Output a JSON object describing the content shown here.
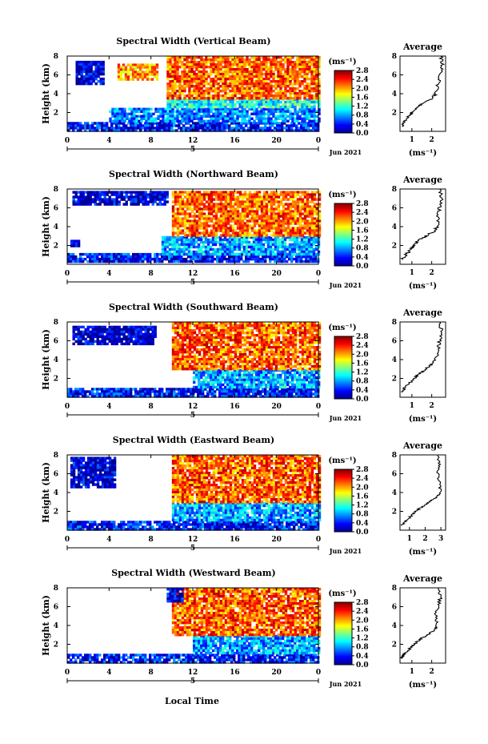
{
  "figure": {
    "x_title": "Local Time",
    "date_label": "Jun 2021",
    "y_label": "Height (km)",
    "colorbar_unit": "(ms⁻¹)",
    "avg_title": "Average",
    "avg_xlabel": "(ms⁻¹)",
    "colormap": "jet",
    "colormap_colors": [
      "#00008f",
      "#0000ff",
      "#0080ff",
      "#00ffff",
      "#80ff80",
      "#ffff00",
      "#ff8000",
      "#ff0000",
      "#800000"
    ]
  },
  "chart_data": [
    {
      "type": "heatmap",
      "title": "Spectral Width (Vertical Beam)",
      "xlabel": "Local Time",
      "ylabel": "Height (km)",
      "xlim": [
        0,
        24
      ],
      "ylim": [
        0,
        8
      ],
      "x_ticks": [
        "0",
        "4",
        "8",
        "12",
        "16",
        "20",
        "0"
      ],
      "x_day_label": "5",
      "y_ticks": [
        "2",
        "4",
        "6",
        "8"
      ],
      "colorbar": {
        "label": "(ms⁻¹)",
        "ticks": [
          "0.0",
          "0.4",
          "0.8",
          "1.2",
          "1.6",
          "2.0",
          "2.4",
          "2.8"
        ],
        "range": [
          0,
          2.8
        ]
      },
      "regions": [
        {
          "x": [
            0,
            24
          ],
          "y": [
            0.2,
            1.0
          ],
          "value": 0.4
        },
        {
          "x": [
            4,
            24
          ],
          "y": [
            1.0,
            2.5
          ],
          "value": 0.7
        },
        {
          "x": [
            9.5,
            24
          ],
          "y": [
            2.5,
            3.5
          ],
          "value": 1.1
        },
        {
          "x": [
            9.5,
            24
          ],
          "y": [
            3.5,
            8
          ],
          "value": 2.2
        },
        {
          "x": [
            0.8,
            3.5
          ],
          "y": [
            5.2,
            7.5
          ],
          "value": 0.2
        },
        {
          "x": [
            4.8,
            8.5
          ],
          "y": [
            5.5,
            7.2
          ],
          "value": 2.0
        }
      ],
      "average": {
        "title": "Average",
        "xlabel": "(ms⁻¹)",
        "xlim": [
          0.4,
          2.7
        ],
        "x_ticks": [
          "1",
          "2"
        ],
        "y_ticks": [
          "2",
          "4",
          "6",
          "8"
        ],
        "ylim": [
          0,
          8
        ],
        "profile": [
          [
            0.5,
            0.5
          ],
          [
            0.6,
            1.0
          ],
          [
            0.8,
            1.5
          ],
          [
            1.0,
            2.0
          ],
          [
            1.2,
            2.5
          ],
          [
            1.6,
            3.0
          ],
          [
            2.0,
            3.5
          ],
          [
            2.2,
            4.0
          ],
          [
            2.3,
            5.0
          ],
          [
            2.45,
            6.0
          ],
          [
            2.55,
            7.0
          ],
          [
            2.45,
            8.0
          ]
        ]
      }
    },
    {
      "type": "heatmap",
      "title": "Spectral Width (Northward Beam)",
      "xlabel": "Local Time",
      "ylabel": "Height (km)",
      "xlim": [
        0,
        24
      ],
      "ylim": [
        0,
        8
      ],
      "x_ticks": [
        "0",
        "4",
        "8",
        "12",
        "16",
        "20",
        "0"
      ],
      "x_day_label": "5",
      "y_ticks": [
        "2",
        "4",
        "6",
        "8"
      ],
      "colorbar": {
        "label": "(ms⁻¹)",
        "ticks": [
          "0.0",
          "0.4",
          "0.8",
          "1.2",
          "1.6",
          "2.0",
          "2.4",
          "2.8"
        ],
        "range": [
          0,
          2.8
        ]
      },
      "regions": [
        {
          "x": [
            0,
            24
          ],
          "y": [
            0.2,
            1.2
          ],
          "value": 0.4
        },
        {
          "x": [
            9,
            24
          ],
          "y": [
            1.2,
            3.0
          ],
          "value": 0.8
        },
        {
          "x": [
            10,
            24
          ],
          "y": [
            3.0,
            7.8
          ],
          "value": 2.2
        },
        {
          "x": [
            0.5,
            9.5
          ],
          "y": [
            6.5,
            7.8
          ],
          "value": 0.2
        },
        {
          "x": [
            0.3,
            1.2
          ],
          "y": [
            2.0,
            2.6
          ],
          "value": 0.2
        }
      ],
      "average": {
        "title": "Average",
        "xlabel": "(ms⁻¹)",
        "xlim": [
          0.4,
          2.7
        ],
        "x_ticks": [
          "1",
          "2"
        ],
        "y_ticks": [
          "2",
          "4",
          "6",
          "8"
        ],
        "ylim": [
          0,
          8
        ],
        "profile": [
          [
            0.5,
            0.5
          ],
          [
            0.7,
            1.0
          ],
          [
            0.9,
            1.5
          ],
          [
            1.1,
            2.0
          ],
          [
            1.3,
            2.5
          ],
          [
            1.7,
            3.0
          ],
          [
            2.1,
            3.5
          ],
          [
            2.3,
            4.0
          ],
          [
            2.3,
            5.0
          ],
          [
            2.4,
            6.0
          ],
          [
            2.5,
            7.0
          ],
          [
            2.4,
            8.0
          ]
        ]
      }
    },
    {
      "type": "heatmap",
      "title": "Spectral Width (Southward Beam)",
      "xlabel": "Local Time",
      "ylabel": "Height (km)",
      "xlim": [
        0,
        24
      ],
      "ylim": [
        0,
        8
      ],
      "x_ticks": [
        "0",
        "4",
        "8",
        "12",
        "16",
        "20",
        "0"
      ],
      "x_day_label": "5",
      "y_ticks": [
        "2",
        "4",
        "6",
        "8"
      ],
      "colorbar": {
        "label": "(ms⁻¹)",
        "ticks": [
          "0.0",
          "0.4",
          "0.8",
          "1.2",
          "1.6",
          "2.0",
          "2.4",
          "2.8"
        ],
        "range": [
          0,
          2.8
        ]
      },
      "regions": [
        {
          "x": [
            0,
            24
          ],
          "y": [
            0.2,
            1.0
          ],
          "value": 0.4
        },
        {
          "x": [
            12,
            24
          ],
          "y": [
            1.0,
            3.0
          ],
          "value": 0.8
        },
        {
          "x": [
            10,
            24
          ],
          "y": [
            3.0,
            8
          ],
          "value": 2.2
        },
        {
          "x": [
            0.5,
            8.5
          ],
          "y": [
            5.8,
            7.6
          ],
          "value": 0.2
        }
      ],
      "average": {
        "title": "Average",
        "xlabel": "(ms⁻¹)",
        "xlim": [
          0.4,
          2.7
        ],
        "x_ticks": [
          "1",
          "2"
        ],
        "y_ticks": [
          "2",
          "4",
          "6",
          "8"
        ],
        "ylim": [
          0,
          8
        ],
        "profile": [
          [
            0.5,
            0.5
          ],
          [
            0.6,
            1.0
          ],
          [
            0.9,
            1.5
          ],
          [
            1.1,
            2.0
          ],
          [
            1.4,
            2.5
          ],
          [
            1.7,
            3.0
          ],
          [
            2.0,
            3.5
          ],
          [
            2.2,
            4.0
          ],
          [
            2.3,
            5.0
          ],
          [
            2.4,
            6.0
          ],
          [
            2.5,
            7.0
          ],
          [
            2.4,
            8.0
          ]
        ]
      }
    },
    {
      "type": "heatmap",
      "title": "Spectral Width (Eastward Beam)",
      "xlabel": "Local Time",
      "ylabel": "Height (km)",
      "xlim": [
        0,
        24
      ],
      "ylim": [
        0,
        8
      ],
      "x_ticks": [
        "0",
        "4",
        "8",
        "12",
        "16",
        "20",
        "0"
      ],
      "x_day_label": "5",
      "y_ticks": [
        "2",
        "4",
        "6",
        "8"
      ],
      "colorbar": {
        "label": "(ms⁻¹)",
        "ticks": [
          "0.0",
          "0.4",
          "0.8",
          "1.2",
          "1.6",
          "2.0",
          "2.4",
          "2.8"
        ],
        "range": [
          0,
          2.8
        ]
      },
      "regions": [
        {
          "x": [
            0,
            24
          ],
          "y": [
            0.2,
            1.0
          ],
          "value": 0.4
        },
        {
          "x": [
            10,
            24
          ],
          "y": [
            1.0,
            3.0
          ],
          "value": 0.8
        },
        {
          "x": [
            10,
            24
          ],
          "y": [
            3.0,
            8
          ],
          "value": 2.2
        },
        {
          "x": [
            0.3,
            4.5
          ],
          "y": [
            4.5,
            7.8
          ],
          "value": 0.2
        }
      ],
      "average": {
        "title": "Average",
        "xlabel": "(ms⁻¹)",
        "xlim": [
          0.4,
          3.3
        ],
        "x_ticks": [
          "1",
          "2",
          "3"
        ],
        "y_ticks": [
          "2",
          "4",
          "6",
          "8"
        ],
        "ylim": [
          0,
          8
        ],
        "profile": [
          [
            0.5,
            0.5
          ],
          [
            0.8,
            1.0
          ],
          [
            1.1,
            1.5
          ],
          [
            1.4,
            2.0
          ],
          [
            1.8,
            2.5
          ],
          [
            2.3,
            3.0
          ],
          [
            2.7,
            3.5
          ],
          [
            3.0,
            4.0
          ],
          [
            2.9,
            5.0
          ],
          [
            2.8,
            6.0
          ],
          [
            2.9,
            7.0
          ],
          [
            2.8,
            8.0
          ]
        ]
      }
    },
    {
      "type": "heatmap",
      "title": "Spectral Width (Westward Beam)",
      "xlabel": "Local Time",
      "ylabel": "Height (km)",
      "xlim": [
        0,
        24
      ],
      "ylim": [
        0,
        8
      ],
      "x_ticks": [
        "0",
        "4",
        "8",
        "12",
        "16",
        "20",
        "0"
      ],
      "x_day_label": "5",
      "y_ticks": [
        "2",
        "4",
        "6",
        "8"
      ],
      "colorbar": {
        "label": "(ms⁻¹)",
        "ticks": [
          "0.0",
          "0.4",
          "0.8",
          "1.2",
          "1.6",
          "2.0",
          "2.4",
          "2.8"
        ],
        "range": [
          0,
          2.8
        ]
      },
      "regions": [
        {
          "x": [
            0,
            24
          ],
          "y": [
            0.2,
            1.0
          ],
          "value": 0.4
        },
        {
          "x": [
            12,
            24
          ],
          "y": [
            1.0,
            3.0
          ],
          "value": 0.8
        },
        {
          "x": [
            10,
            24
          ],
          "y": [
            3.0,
            8
          ],
          "value": 2.2
        },
        {
          "x": [
            9.5,
            11
          ],
          "y": [
            6.5,
            8
          ],
          "value": 0.2
        }
      ],
      "average": {
        "title": "Average",
        "xlabel": "(ms⁻¹)",
        "xlim": [
          0.4,
          2.7
        ],
        "x_ticks": [
          "1",
          "2"
        ],
        "y_ticks": [
          "2",
          "4",
          "6",
          "8"
        ],
        "ylim": [
          0,
          8
        ],
        "profile": [
          [
            0.5,
            0.5
          ],
          [
            0.6,
            1.0
          ],
          [
            0.9,
            1.5
          ],
          [
            1.1,
            2.0
          ],
          [
            1.4,
            2.5
          ],
          [
            1.8,
            3.0
          ],
          [
            2.1,
            3.5
          ],
          [
            2.3,
            4.0
          ],
          [
            2.2,
            5.0
          ],
          [
            2.3,
            6.0
          ],
          [
            2.45,
            7.0
          ],
          [
            2.35,
            8.0
          ]
        ]
      }
    }
  ]
}
